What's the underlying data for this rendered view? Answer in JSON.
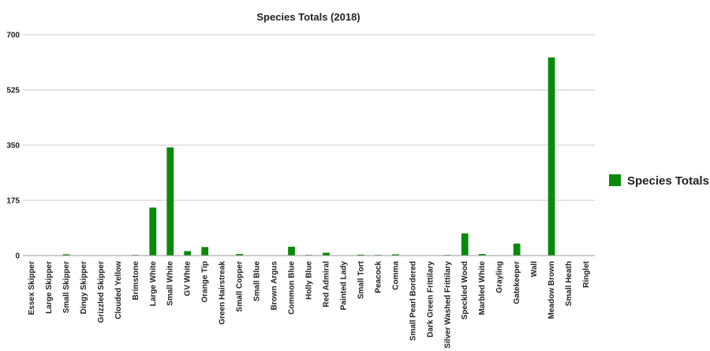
{
  "chart_data": {
    "type": "bar",
    "title": "Species Totals (2018)",
    "xlabel": "",
    "ylabel": "",
    "ylim": [
      0,
      700
    ],
    "yticks": [
      "0",
      "175",
      "350",
      "525",
      "700"
    ],
    "grid": true,
    "legend_position": "right",
    "categories": [
      "Essex Skipper",
      "Large Skipper",
      "Small Skipper",
      "Dingy Skipper",
      "Grizzled Skipper",
      "Clouded Yellow",
      "Brimstone",
      "Large White",
      "Small White",
      "GV White",
      "Orange Tip",
      "Green Hairstreak",
      "Small Copper",
      "Small Blue",
      "Brown Argus",
      "Common Blue",
      "Holly Blue",
      "Red Admiral",
      "Painted Lady",
      "Small Tort",
      "Peacock",
      "Comma",
      "Small Pearl Bordered",
      "Dark Green Frittilary",
      "Silver Washed Frittilary",
      "Speckled Wood",
      "Marbled White",
      "Grayling",
      "Gatekeeper",
      "Wall",
      "Meadow Brown",
      "Small Heath",
      "Ringlet"
    ],
    "series": [
      {
        "name": "Species Totals",
        "color": "#0a8a0a",
        "values": [
          0,
          0,
          4,
          0,
          0,
          0,
          2,
          152,
          343,
          14,
          27,
          0,
          5,
          0,
          0,
          28,
          2,
          9,
          0,
          3,
          2,
          4,
          0,
          0,
          2,
          70,
          5,
          0,
          38,
          0,
          628,
          0,
          0
        ]
      }
    ]
  }
}
